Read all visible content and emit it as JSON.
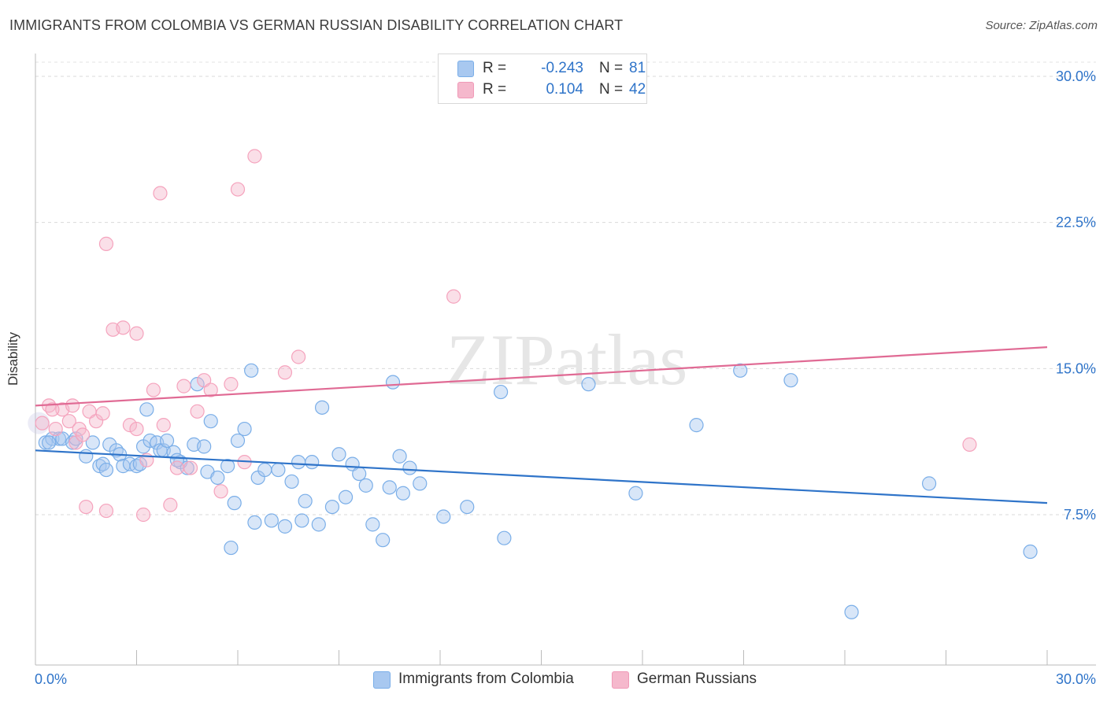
{
  "title": "IMMIGRANTS FROM COLOMBIA VS GERMAN RUSSIAN DISABILITY CORRELATION CHART",
  "source": "Source: ZipAtlas.com",
  "watermark": "ZIPatlas",
  "legend_top": [
    {
      "r_label": "R =",
      "r_value": "-0.243",
      "n_label": "N =",
      "n_value": "81",
      "color": "#a8c8f0"
    },
    {
      "r_label": "R =",
      "r_value": "0.104",
      "n_label": "N =",
      "n_value": "42",
      "color": "#f5b8cc"
    }
  ],
  "legend_bottom": [
    {
      "label": "Immigrants from Colombia",
      "color": "#a8c8f0"
    },
    {
      "label": "German Russians",
      "color": "#f5b8cc"
    }
  ],
  "chart_data": {
    "type": "scatter",
    "title": "IMMIGRANTS FROM COLOMBIA VS GERMAN RUSSIAN DISABILITY CORRELATION CHART",
    "xlabel": "",
    "ylabel": "Disability",
    "xlim": [
      0,
      30
    ],
    "ylim": [
      0,
      31
    ],
    "x_tick_labels": [
      "0.0%",
      "30.0%"
    ],
    "y_ticks": [
      7.5,
      15.0,
      22.5,
      30.0
    ],
    "y_tick_labels": [
      "7.5%",
      "15.0%",
      "22.5%",
      "30.0%"
    ],
    "grid": true,
    "series": [
      {
        "name": "Immigrants from Colombia",
        "color": "#7aaee8",
        "line_color": "#2f74c9",
        "trend": {
          "x": [
            0,
            30
          ],
          "y": [
            10.8,
            8.1
          ]
        },
        "points": [
          [
            0.3,
            11.2
          ],
          [
            0.5,
            11.4
          ],
          [
            0.7,
            11.4
          ],
          [
            0.8,
            11.4
          ],
          [
            1.1,
            11.2
          ],
          [
            1.2,
            11.4
          ],
          [
            1.5,
            10.5
          ],
          [
            1.7,
            11.2
          ],
          [
            1.9,
            10.0
          ],
          [
            2.0,
            10.1
          ],
          [
            2.2,
            11.1
          ],
          [
            2.4,
            10.8
          ],
          [
            2.5,
            10.6
          ],
          [
            2.6,
            10.0
          ],
          [
            2.8,
            10.1
          ],
          [
            3.0,
            10.0
          ],
          [
            3.2,
            11.0
          ],
          [
            3.3,
            12.9
          ],
          [
            3.4,
            11.3
          ],
          [
            3.6,
            11.2
          ],
          [
            3.7,
            10.8
          ],
          [
            3.8,
            10.8
          ],
          [
            3.9,
            11.3
          ],
          [
            4.1,
            10.7
          ],
          [
            4.3,
            10.2
          ],
          [
            4.5,
            9.9
          ],
          [
            4.7,
            11.1
          ],
          [
            4.8,
            14.2
          ],
          [
            5.0,
            11.0
          ],
          [
            5.1,
            9.7
          ],
          [
            5.2,
            12.3
          ],
          [
            5.4,
            9.4
          ],
          [
            5.7,
            10.0
          ],
          [
            5.8,
            5.8
          ],
          [
            5.9,
            8.1
          ],
          [
            6.0,
            11.3
          ],
          [
            6.2,
            11.9
          ],
          [
            6.4,
            14.9
          ],
          [
            6.5,
            7.1
          ],
          [
            6.6,
            9.4
          ],
          [
            7.0,
            7.2
          ],
          [
            7.2,
            9.8
          ],
          [
            7.4,
            6.9
          ],
          [
            7.6,
            9.2
          ],
          [
            7.8,
            10.2
          ],
          [
            7.9,
            7.2
          ],
          [
            8.0,
            8.2
          ],
          [
            8.2,
            10.2
          ],
          [
            8.4,
            7.0
          ],
          [
            8.5,
            13.0
          ],
          [
            8.8,
            7.9
          ],
          [
            9.0,
            10.6
          ],
          [
            9.2,
            8.4
          ],
          [
            9.4,
            10.1
          ],
          [
            9.6,
            9.6
          ],
          [
            9.8,
            9.0
          ],
          [
            10.0,
            7.0
          ],
          [
            10.3,
            6.2
          ],
          [
            10.5,
            8.9
          ],
          [
            10.6,
            14.3
          ],
          [
            10.8,
            10.5
          ],
          [
            10.9,
            8.6
          ],
          [
            11.1,
            9.9
          ],
          [
            11.4,
            9.1
          ],
          [
            12.1,
            7.4
          ],
          [
            12.8,
            7.9
          ],
          [
            13.8,
            13.8
          ],
          [
            13.9,
            6.3
          ],
          [
            16.4,
            14.2
          ],
          [
            17.8,
            8.6
          ],
          [
            19.6,
            12.1
          ],
          [
            20.9,
            14.9
          ],
          [
            22.4,
            14.4
          ],
          [
            24.2,
            2.5
          ],
          [
            26.5,
            9.1
          ],
          [
            29.5,
            5.6
          ],
          [
            3.1,
            10.1
          ],
          [
            4.2,
            10.3
          ],
          [
            2.1,
            9.8
          ],
          [
            0.4,
            11.2
          ],
          [
            6.8,
            9.8
          ]
        ]
      },
      {
        "name": "German Russians",
        "color": "#f5a3bd",
        "line_color": "#e06a94",
        "trend": {
          "x": [
            0,
            30
          ],
          "y": [
            13.1,
            16.1
          ]
        },
        "points": [
          [
            0.2,
            12.2
          ],
          [
            0.4,
            13.1
          ],
          [
            0.6,
            11.9
          ],
          [
            0.8,
            12.9
          ],
          [
            1.0,
            12.3
          ],
          [
            1.2,
            11.2
          ],
          [
            1.3,
            11.9
          ],
          [
            1.4,
            11.6
          ],
          [
            1.5,
            7.9
          ],
          [
            1.6,
            12.8
          ],
          [
            1.8,
            12.3
          ],
          [
            2.0,
            12.7
          ],
          [
            2.1,
            7.7
          ],
          [
            2.1,
            21.4
          ],
          [
            2.3,
            17.0
          ],
          [
            2.6,
            17.1
          ],
          [
            2.8,
            12.1
          ],
          [
            3.0,
            11.9
          ],
          [
            3.2,
            7.5
          ],
          [
            3.3,
            10.3
          ],
          [
            3.5,
            13.9
          ],
          [
            3.7,
            24.0
          ],
          [
            3.8,
            12.1
          ],
          [
            4.0,
            8.0
          ],
          [
            4.2,
            9.9
          ],
          [
            4.4,
            14.1
          ],
          [
            4.6,
            9.9
          ],
          [
            4.8,
            12.8
          ],
          [
            5.0,
            14.4
          ],
          [
            5.2,
            13.9
          ],
          [
            5.5,
            8.7
          ],
          [
            5.8,
            14.2
          ],
          [
            6.0,
            24.2
          ],
          [
            6.2,
            10.2
          ],
          [
            6.5,
            25.9
          ],
          [
            7.4,
            14.8
          ],
          [
            7.8,
            15.6
          ],
          [
            12.4,
            18.7
          ],
          [
            27.7,
            11.1
          ],
          [
            0.5,
            12.9
          ],
          [
            1.1,
            13.1
          ],
          [
            3.0,
            16.8
          ]
        ]
      }
    ]
  }
}
